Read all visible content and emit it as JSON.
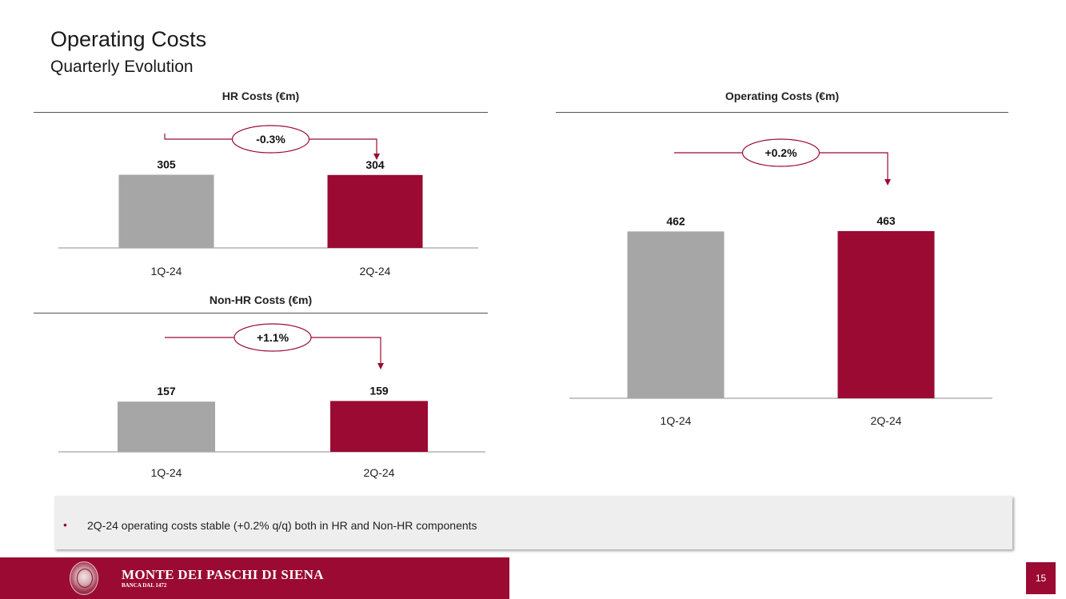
{
  "page": {
    "title": "Operating Costs",
    "subtitle": "Quarterly Evolution",
    "page_number": "15"
  },
  "colors": {
    "previous_bar": "#a6a6a6",
    "current_bar": "#9b0a32",
    "accent": "#9b0a32"
  },
  "chart_data": [
    {
      "type": "bar",
      "title": "HR Costs (€m)",
      "categories": [
        "1Q-24",
        "2Q-24"
      ],
      "values": [
        305,
        304
      ],
      "labels": [
        "305",
        "304"
      ],
      "change_label": "-0.3%"
    },
    {
      "type": "bar",
      "title": "Non-HR Costs (€m)",
      "categories": [
        "1Q-24",
        "2Q-24"
      ],
      "values": [
        157,
        159
      ],
      "labels": [
        "157",
        "159"
      ],
      "change_label": "+1.1%"
    },
    {
      "type": "bar",
      "title": "Operating Costs (€m)",
      "categories": [
        "1Q-24",
        "2Q-24"
      ],
      "values": [
        462,
        463
      ],
      "labels": [
        "462",
        "463"
      ],
      "change_label": "+0.2%"
    }
  ],
  "note": {
    "bullet": "•",
    "text": "2Q-24 operating costs stable (+0.2% q/q) both in HR and Non-HR components"
  },
  "footer": {
    "brand": "MONTE DEI PASCHI DI SIENA",
    "tagline": "BANCA DAL 1472"
  }
}
